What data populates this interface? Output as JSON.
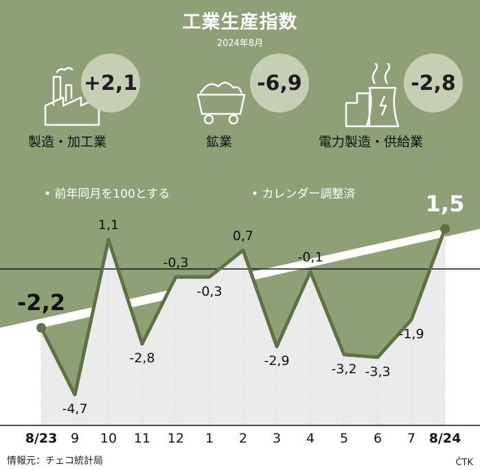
{
  "header": {
    "title": "工業生産指数",
    "subtitle": "2024年8月"
  },
  "indicators": [
    {
      "label": "製造・加工業",
      "value": "+2,1",
      "icon": "factory-icon"
    },
    {
      "label": "鉱業",
      "value": "-6,9",
      "icon": "mine-cart-icon"
    },
    {
      "label": "電力製造・供給業",
      "value": "-2,8",
      "icon": "power-plant-icon"
    }
  ],
  "notes": {
    "yoy": "前年同月を100とする",
    "adjusted": "カレンダー調整済"
  },
  "chart_data": {
    "type": "line",
    "categories": [
      "8/23",
      "9",
      "10",
      "11",
      "12",
      "1",
      "2",
      "3",
      "4",
      "5",
      "6",
      "7",
      "8/24"
    ],
    "values": [
      -2.2,
      -4.7,
      1.1,
      -2.8,
      -0.3,
      -0.3,
      0.7,
      -2.9,
      -0.1,
      -3.2,
      -3.3,
      -1.9,
      1.5
    ],
    "value_labels": [
      "-2,2",
      "-4,7",
      "1,1",
      "-2,8",
      "-0,3",
      "-0,3",
      "0,7",
      "-2,9",
      "-0,1",
      "-3,2",
      "-3,3",
      "-1,9",
      "1,5"
    ],
    "ylim": [
      -5.5,
      2.0
    ],
    "colors": {
      "line": "#5f7247",
      "background": "#8f9f76",
      "area": "#ebebeb",
      "grid": "#d2d2d2"
    }
  },
  "footer": {
    "source": "情報元：チェコ統計局",
    "credit": "ČTK"
  }
}
